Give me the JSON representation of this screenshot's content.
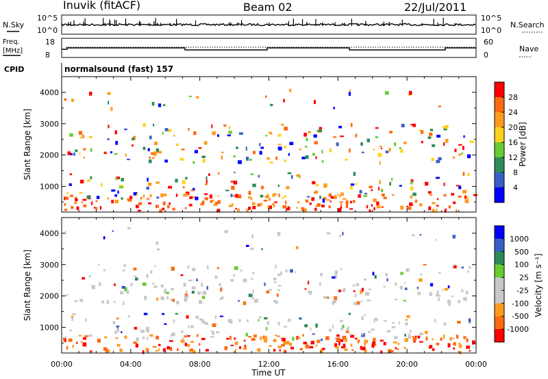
{
  "header": {
    "station": "Inuvik (fitACF)",
    "beam": "Beam 02",
    "date": "22/Jul/2011"
  },
  "panels": {
    "nsky": {
      "label": "N.Sky",
      "ticks": [
        "10^5",
        "10^0"
      ]
    },
    "nsearch": {
      "label": "N.Search",
      "ticks": [
        "10^5",
        "10^0"
      ]
    },
    "freq": {
      "label_line1": "Freq.",
      "label_line2": "[MHz]",
      "ticks": [
        "18",
        "8"
      ]
    },
    "nave": {
      "label": "Nave",
      "ticks": [
        "60",
        "0"
      ]
    },
    "cpid": {
      "label": "CPID",
      "mode": "normalsound (fast) 157"
    }
  },
  "colors": {
    "power_scale": [
      "#0000ff",
      "#3a5fc8",
      "#2e8b57",
      "#66cc33",
      "#ffd21e",
      "#ff9a1e",
      "#ff6a10",
      "#ff0000"
    ],
    "velocity_scale": [
      "#ff0000",
      "#ff6a10",
      "#ff9a1e",
      "#c8c8c8",
      "#c8c8c8",
      "#66cc33",
      "#2e8b57",
      "#3a5fc8",
      "#0000ff"
    ]
  },
  "chart_data": [
    {
      "type": "heatmap",
      "name": "power",
      "ylabel": "Slant Range [km]",
      "x_ticks": [
        "00:00",
        "04:00",
        "08:00",
        "12:00",
        "16:00",
        "20:00",
        "00:00"
      ],
      "y_ticks": [
        1000,
        2000,
        3000,
        4000
      ],
      "ylim": [
        180,
        4500
      ],
      "colorbar": {
        "label": "Power [dB]",
        "ticks": [
          "4",
          "8",
          "12",
          "16",
          "20",
          "24",
          "28"
        ],
        "range": [
          0,
          32
        ]
      }
    },
    {
      "type": "heatmap",
      "name": "velocity",
      "ylabel": "Slant Range [km]",
      "xlabel": "Time UT",
      "x_ticks": [
        "00:00",
        "04:00",
        "08:00",
        "12:00",
        "16:00",
        "20:00",
        "00:00"
      ],
      "y_ticks": [
        1000,
        2000,
        3000,
        4000
      ],
      "ylim": [
        180,
        4500
      ],
      "colorbar": {
        "label": "Velocity [m s⁻¹]",
        "ticks": [
          "1000",
          "500",
          "100",
          "25",
          "-25",
          "-100",
          "-500",
          "-1000"
        ]
      }
    }
  ]
}
